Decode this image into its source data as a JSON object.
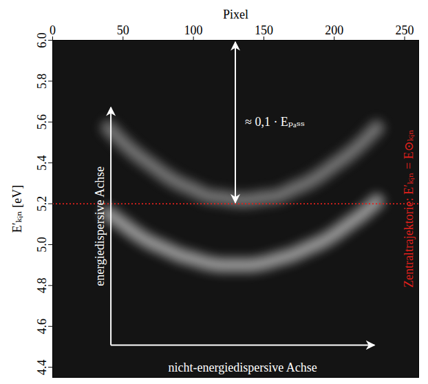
{
  "chart_data": {
    "type": "line",
    "x_label": "Pixel",
    "y_label": "E′ₖᵢₙ [eV]",
    "xlim": [
      0,
      260
    ],
    "xticks": [
      0,
      50,
      100,
      150,
      200,
      250
    ],
    "ylim": [
      4.35,
      6.0
    ],
    "yticks": [
      4.4,
      4.6,
      4.8,
      {
        "value": 5,
        "label": "5.0"
      },
      5.2,
      5.4,
      5.6,
      5.8,
      {
        "value": 6,
        "label": "6.0"
      }
    ],
    "grid": false,
    "x": [
      40,
      50,
      60,
      70,
      80,
      90,
      100,
      110,
      120,
      130,
      140,
      150,
      160,
      170,
      180,
      190,
      200,
      210,
      220,
      230
    ],
    "series": [
      {
        "color": "#f0f0f0",
        "values": [
          5.15,
          5.1,
          5.05,
          5.01,
          4.98,
          4.95,
          4.93,
          4.91,
          4.9,
          4.9,
          4.9,
          4.91,
          4.93,
          4.95,
          4.98,
          5.01,
          5.05,
          5.1,
          5.15,
          5.21
        ]
      },
      {
        "color": "#b4b4b4",
        "values": [
          5.57,
          5.5,
          5.44,
          5.39,
          5.34,
          5.3,
          5.27,
          5.24,
          5.23,
          5.22,
          5.22,
          5.23,
          5.24,
          5.27,
          5.3,
          5.34,
          5.39,
          5.44,
          5.5,
          5.57
        ]
      }
    ],
    "reference_line": {
      "value": 5.2,
      "label": "Zentraltrajektorie: E′ₖᵢₙ = E⊙ₖᵢₙ",
      "color": "#e3211c",
      "line_style": "dotted"
    },
    "annotations": {
      "vertical_arrow": "energiedispersive Achse",
      "horizontal_arrow": "nicht-energiedispersive Achse",
      "double_arrow": "≈ 0,1 · Eₚₐₛₛ"
    }
  }
}
